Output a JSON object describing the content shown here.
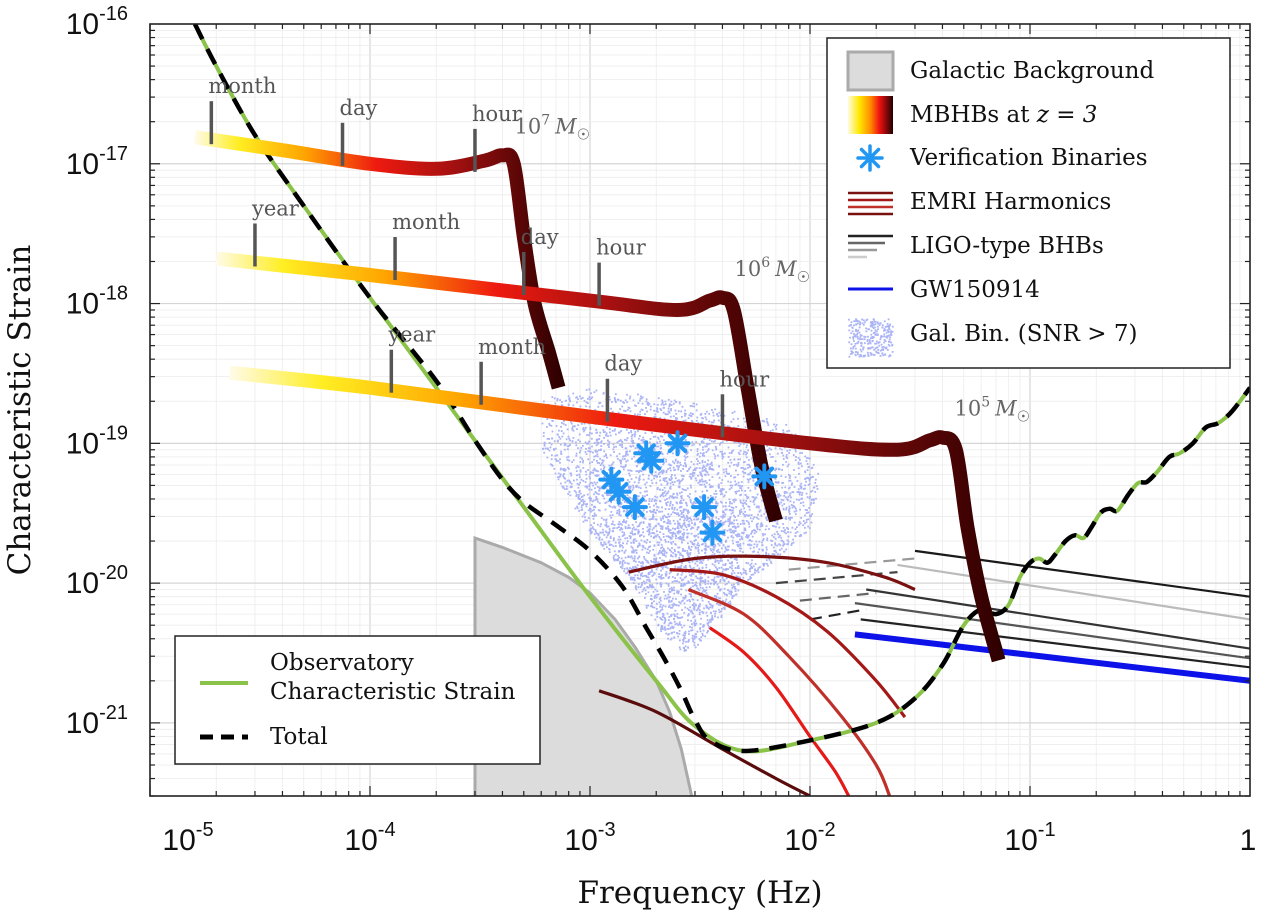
{
  "chart_data": {
    "type": "line",
    "xlabel": "Frequency (Hz)",
    "ylabel": "Characteristic Strain",
    "xscale": "log",
    "yscale": "log",
    "xlim": [
      1e-05,
      1
    ],
    "ylim": [
      3e-22,
      1e-16
    ],
    "grid": true,
    "x_ticks": [
      {
        "base": "10",
        "exp": "-5",
        "value": 1e-05
      },
      {
        "base": "10",
        "exp": "-4",
        "value": 0.0001
      },
      {
        "base": "10",
        "exp": "-3",
        "value": 0.001
      },
      {
        "base": "10",
        "exp": "-2",
        "value": 0.01
      },
      {
        "base": "10",
        "exp": "-1",
        "value": 0.1
      },
      {
        "base": "1",
        "exp": "0",
        "value": 1
      }
    ],
    "y_ticks": [
      {
        "base": "10",
        "exp": "-16",
        "value": 1e-16
      },
      {
        "base": "10",
        "exp": "-17",
        "value": 1e-17
      },
      {
        "base": "10",
        "exp": "-18",
        "value": 1e-18
      },
      {
        "base": "10",
        "exp": "-19",
        "value": 1e-19
      },
      {
        "base": "10",
        "exp": "-20",
        "value": 1e-20
      },
      {
        "base": "10",
        "exp": "-21",
        "value": 1e-21
      }
    ],
    "legend_main": {
      "position": "top-right",
      "entries": [
        {
          "key": "gal_bg",
          "label": "Galactic Background"
        },
        {
          "key": "mbhb",
          "label_prefix": "MBHBs at ",
          "label_math": "z = 3"
        },
        {
          "key": "vb",
          "label": "Verification Binaries"
        },
        {
          "key": "emri",
          "label": "EMRI Harmonics"
        },
        {
          "key": "ligo",
          "label": "LIGO-type BHBs"
        },
        {
          "key": "gw",
          "label": "GW150914"
        },
        {
          "key": "galbin",
          "label": "Gal. Bin. (SNR > 7)"
        }
      ]
    },
    "legend_sens": {
      "position": "bottom-left",
      "entries": [
        {
          "key": "sens",
          "label_lines": [
            "Observatory",
            "Characteristic Strain"
          ]
        },
        {
          "key": "total",
          "label": "Total"
        }
      ]
    },
    "mbhb_tracks": [
      {
        "mass_label": "10^7 M☉",
        "mass_base": "10",
        "mass_exp": "7",
        "mass_unit": "M",
        "mass_sub": "☉",
        "points": [
          [
            1.6e-05,
            1.55e-17
          ],
          [
            4e-05,
            1.25e-17
          ],
          [
            0.0001,
            1e-17
          ],
          [
            0.0002,
            9.2e-18
          ],
          [
            0.00033,
            1.05e-17
          ],
          [
            0.0004,
            1.15e-17
          ],
          [
            0.00045,
            1e-17
          ],
          [
            0.0005,
            3e-18
          ],
          [
            0.00056,
            1e-18
          ],
          [
            0.00065,
            4.5e-19
          ],
          [
            0.00072,
            2.5e-19
          ]
        ],
        "time_marks": [
          {
            "label": "month",
            "f": 1.9e-05,
            "h": 1.5e-17
          },
          {
            "label": "day",
            "f": 7.5e-05,
            "h": 1.05e-17
          },
          {
            "label": "hour",
            "f": 0.0003,
            "h": 9.5e-18
          }
        ]
      },
      {
        "mass_label": "10^6 M☉",
        "mass_base": "10",
        "mass_exp": "6",
        "mass_unit": "M",
        "mass_sub": "☉",
        "points": [
          [
            2e-05,
            2.1e-18
          ],
          [
            0.0001,
            1.6e-18
          ],
          [
            0.001,
            1.05e-18
          ],
          [
            0.0025,
            9e-19
          ],
          [
            0.0035,
            1.05e-18
          ],
          [
            0.004,
            1.1e-18
          ],
          [
            0.0045,
            9e-19
          ],
          [
            0.0052,
            2.5e-19
          ],
          [
            0.006,
            7e-20
          ],
          [
            0.007,
            2.8e-20
          ]
        ],
        "time_marks": [
          {
            "label": "year",
            "f": 3e-05,
            "h": 2e-18
          },
          {
            "label": "month",
            "f": 0.00013,
            "h": 1.6e-18
          },
          {
            "label": "day",
            "f": 0.0005,
            "h": 1.25e-18
          },
          {
            "label": "hour",
            "f": 0.0011,
            "h": 1.05e-18
          }
        ]
      },
      {
        "mass_label": "10^5 M☉",
        "mass_base": "10",
        "mass_exp": "5",
        "mass_unit": "M",
        "mass_sub": "☉",
        "points": [
          [
            2.3e-05,
            3.2e-19
          ],
          [
            0.0001,
            2.5e-19
          ],
          [
            0.001,
            1.55e-19
          ],
          [
            0.01,
            1e-19
          ],
          [
            0.025,
            9e-20
          ],
          [
            0.035,
            1.05e-19
          ],
          [
            0.04,
            1.1e-19
          ],
          [
            0.046,
            9e-20
          ],
          [
            0.052,
            2.5e-20
          ],
          [
            0.06,
            8e-21
          ],
          [
            0.072,
            2.8e-21
          ]
        ],
        "time_marks": [
          {
            "label": "year",
            "f": 0.000125,
            "h": 2.5e-19
          },
          {
            "label": "month",
            "f": 0.00032,
            "h": 2.05e-19
          },
          {
            "label": "day",
            "f": 0.0012,
            "h": 1.55e-19
          },
          {
            "label": "hour",
            "f": 0.004,
            "h": 1.2e-19
          }
        ]
      }
    ],
    "sensitivity": {
      "name": "Observatory Characteristic Strain",
      "color": "#8bc34a",
      "points": [
        [
          1.6e-05,
          1e-16
        ],
        [
          2e-05,
          5e-17
        ],
        [
          3e-05,
          1.6e-17
        ],
        [
          5e-05,
          5e-18
        ],
        [
          0.0001,
          1.1e-18
        ],
        [
          0.0002,
          2.5e-19
        ],
        [
          0.0005,
          3.5e-20
        ],
        [
          0.001,
          8e-21
        ],
        [
          0.002,
          2e-21
        ],
        [
          0.003,
          9.5e-22
        ],
        [
          0.005,
          6.3e-22
        ],
        [
          0.01,
          7.5e-22
        ],
        [
          0.02,
          1e-21
        ],
        [
          0.03,
          1.5e-21
        ],
        [
          0.04,
          2.6e-21
        ],
        [
          0.05,
          5e-21
        ],
        [
          0.06,
          6.5e-21
        ],
        [
          0.07,
          6e-21
        ],
        [
          0.08,
          7e-21
        ],
        [
          0.09,
          1.1e-20
        ],
        [
          0.1,
          1.4e-20
        ],
        [
          0.11,
          1.5e-20
        ],
        [
          0.12,
          1.4e-20
        ],
        [
          0.13,
          1.6e-20
        ],
        [
          0.145,
          2e-20
        ],
        [
          0.16,
          2.2e-20
        ],
        [
          0.175,
          2.1e-20
        ],
        [
          0.19,
          2.5e-20
        ],
        [
          0.21,
          3.2e-20
        ],
        [
          0.23,
          3.4e-20
        ],
        [
          0.25,
          3.3e-20
        ],
        [
          0.28,
          4.3e-20
        ],
        [
          0.31,
          5.2e-20
        ],
        [
          0.34,
          5.3e-20
        ],
        [
          0.38,
          6.3e-20
        ],
        [
          0.43,
          8e-20
        ],
        [
          0.48,
          8.5e-20
        ],
        [
          0.55,
          1e-19
        ],
        [
          0.63,
          1.3e-19
        ],
        [
          0.72,
          1.4e-19
        ],
        [
          0.83,
          1.7e-19
        ],
        [
          1.0,
          2.5e-19
        ]
      ]
    },
    "total": {
      "name": "Total",
      "color": "#000000",
      "points": [
        [
          1.6e-05,
          1e-16
        ],
        [
          2e-05,
          5e-17
        ],
        [
          3e-05,
          1.6e-17
        ],
        [
          5e-05,
          5e-18
        ],
        [
          0.0001,
          1.1e-18
        ],
        [
          0.0002,
          2.8e-19
        ],
        [
          0.0003,
          1.05e-19
        ],
        [
          0.0004,
          5.5e-20
        ],
        [
          0.0005,
          3.8e-20
        ],
        [
          0.0007,
          2.6e-20
        ],
        [
          0.001,
          1.7e-20
        ],
        [
          0.0014,
          9.5e-21
        ],
        [
          0.0018,
          4.8e-21
        ],
        [
          0.0022,
          2.8e-21
        ],
        [
          0.0026,
          1.7e-21
        ],
        [
          0.003,
          1.05e-21
        ],
        [
          0.0035,
          7.5e-22
        ],
        [
          0.005,
          6.3e-22
        ],
        [
          0.01,
          7.5e-22
        ],
        [
          0.02,
          1e-21
        ],
        [
          0.03,
          1.5e-21
        ],
        [
          0.04,
          2.6e-21
        ],
        [
          0.05,
          5e-21
        ],
        [
          0.06,
          6.5e-21
        ],
        [
          0.07,
          6e-21
        ],
        [
          0.08,
          7e-21
        ],
        [
          0.09,
          1.1e-20
        ],
        [
          0.1,
          1.4e-20
        ],
        [
          0.11,
          1.5e-20
        ],
        [
          0.12,
          1.4e-20
        ],
        [
          0.13,
          1.6e-20
        ],
        [
          0.145,
          2e-20
        ],
        [
          0.16,
          2.2e-20
        ],
        [
          0.175,
          2.1e-20
        ],
        [
          0.19,
          2.5e-20
        ],
        [
          0.21,
          3.2e-20
        ],
        [
          0.23,
          3.4e-20
        ],
        [
          0.25,
          3.3e-20
        ],
        [
          0.28,
          4.3e-20
        ],
        [
          0.31,
          5.2e-20
        ],
        [
          0.34,
          5.3e-20
        ],
        [
          0.38,
          6.3e-20
        ],
        [
          0.43,
          8e-20
        ],
        [
          0.48,
          8.5e-20
        ],
        [
          0.55,
          1e-19
        ],
        [
          0.63,
          1.3e-19
        ],
        [
          0.72,
          1.4e-19
        ],
        [
          0.83,
          1.7e-19
        ],
        [
          1.0,
          2.5e-19
        ]
      ]
    },
    "galactic_background": {
      "name": "Galactic Background",
      "color": "#dddddd",
      "points": [
        [
          0.0003,
          2.1e-20
        ],
        [
          0.0004,
          1.8e-20
        ],
        [
          0.0006,
          1.4e-20
        ],
        [
          0.0008,
          1.1e-20
        ],
        [
          0.001,
          8.5e-21
        ],
        [
          0.0013,
          5.5e-21
        ],
        [
          0.0016,
          3.5e-21
        ],
        [
          0.002,
          2e-21
        ],
        [
          0.0023,
          1.2e-21
        ],
        [
          0.0026,
          6.5e-22
        ],
        [
          0.0029,
          3e-22
        ]
      ]
    },
    "verification_binaries": {
      "name": "Verification Binaries",
      "color": "#2196f3",
      "points": [
        [
          0.00125,
          5.5e-20
        ],
        [
          0.00135,
          4.5e-20
        ],
        [
          0.0016,
          3.5e-20
        ],
        [
          0.0018,
          8.5e-20
        ],
        [
          0.0019,
          7.5e-20
        ],
        [
          0.0025,
          1e-19
        ],
        [
          0.0033,
          3.5e-20
        ],
        [
          0.0036,
          2.3e-20
        ],
        [
          0.0062,
          5.8e-20
        ]
      ]
    },
    "galactic_binaries": {
      "name": "Gal. Bin. (SNR > 7)",
      "color": "#aab4f5",
      "region": [
        [
          0.0006,
          2.1e-19
        ],
        [
          0.001,
          2.5e-19
        ],
        [
          0.002,
          2.2e-19
        ],
        [
          0.004,
          1.8e-19
        ],
        [
          0.008,
          1.4e-19
        ],
        [
          0.011,
          6e-20
        ],
        [
          0.01,
          2.5e-20
        ],
        [
          0.007,
          1.5e-20
        ],
        [
          0.005,
          1e-20
        ],
        [
          0.004,
          6e-21
        ],
        [
          0.003,
          3.5e-21
        ],
        [
          0.0025,
          3.2e-21
        ],
        [
          0.002,
          5e-21
        ],
        [
          0.0015,
          1.1e-20
        ],
        [
          0.001,
          2.3e-20
        ],
        [
          0.0008,
          4e-20
        ],
        [
          0.0006,
          9e-20
        ]
      ]
    },
    "emri_harmonics": {
      "name": "EMRI Harmonics",
      "series": [
        {
          "color": "#7a1111",
          "points": [
            [
              0.0015,
              1.2e-20
            ],
            [
              0.003,
              1.5e-20
            ],
            [
              0.006,
              1.55e-20
            ],
            [
              0.012,
              1.4e-20
            ],
            [
              0.022,
              1.1e-20
            ],
            [
              0.03,
              9e-21
            ]
          ]
        },
        {
          "color": "#a51818",
          "points": [
            [
              0.0023,
              1.25e-20
            ],
            [
              0.004,
              1.15e-20
            ],
            [
              0.007,
              8e-21
            ],
            [
              0.012,
              4.5e-21
            ],
            [
              0.02,
              2e-21
            ],
            [
              0.027,
              1.1e-21
            ]
          ]
        },
        {
          "color": "#c0302a",
          "points": [
            [
              0.0028,
              9e-21
            ],
            [
              0.005,
              6e-21
            ],
            [
              0.008,
              3e-21
            ],
            [
              0.014,
              1.1e-21
            ],
            [
              0.02,
              5e-22
            ],
            [
              0.023,
              3e-22
            ]
          ]
        },
        {
          "color": "#e61919",
          "points": [
            [
              0.0035,
              4.8e-21
            ],
            [
              0.005,
              3.2e-21
            ],
            [
              0.007,
              1.8e-21
            ],
            [
              0.01,
              8e-22
            ],
            [
              0.013,
              4.5e-22
            ],
            [
              0.015,
              3e-22
            ]
          ]
        },
        {
          "color": "#5a0b0b",
          "points": [
            [
              0.0011,
              1.7e-21
            ],
            [
              0.002,
              1.2e-21
            ],
            [
              0.004,
              6.5e-22
            ],
            [
              0.007,
              4e-22
            ],
            [
              0.01,
              3e-22
            ]
          ]
        }
      ]
    },
    "ligo_bhbs": {
      "name": "LIGO-type BHBs",
      "series": [
        {
          "color": "#1a1a1a",
          "dashed": false,
          "points": [
            [
              0.03,
              1.7e-20
            ],
            [
              1.0,
              8e-21
            ]
          ]
        },
        {
          "color": "#bbbbbb",
          "dashed": false,
          "points": [
            [
              0.025,
              1.35e-20
            ],
            [
              1.0,
              5.5e-21
            ]
          ]
        },
        {
          "color": "#333333",
          "dashed": false,
          "points": [
            [
              0.018,
              9e-21
            ],
            [
              1.0,
              3.4e-21
            ]
          ]
        },
        {
          "color": "#555555",
          "dashed": false,
          "points": [
            [
              0.016,
              7.2e-21
            ],
            [
              1.0,
              2.9e-21
            ]
          ]
        },
        {
          "color": "#222222",
          "dashed": false,
          "points": [
            [
              0.017,
              5.5e-21
            ],
            [
              1.0,
              2.5e-21
            ]
          ]
        },
        {
          "color": "#999999",
          "dashed": true,
          "points": [
            [
              0.008,
              1.25e-20
            ],
            [
              0.03,
              1.5e-20
            ]
          ]
        },
        {
          "color": "#444444",
          "dashed": true,
          "points": [
            [
              0.007,
              1e-20
            ],
            [
              0.025,
              1.2e-20
            ]
          ]
        },
        {
          "color": "#666666",
          "dashed": true,
          "points": [
            [
              0.009,
              7.5e-21
            ],
            [
              0.02,
              8.5e-21
            ]
          ]
        },
        {
          "color": "#222222",
          "dashed": true,
          "points": [
            [
              0.01,
              5.5e-21
            ],
            [
              0.018,
              6.5e-21
            ]
          ]
        }
      ]
    },
    "gw150914": {
      "name": "GW150914",
      "color": "#0d12e8",
      "points": [
        [
          0.016,
          4.3e-21
        ],
        [
          1.0,
          2e-21
        ]
      ]
    }
  }
}
